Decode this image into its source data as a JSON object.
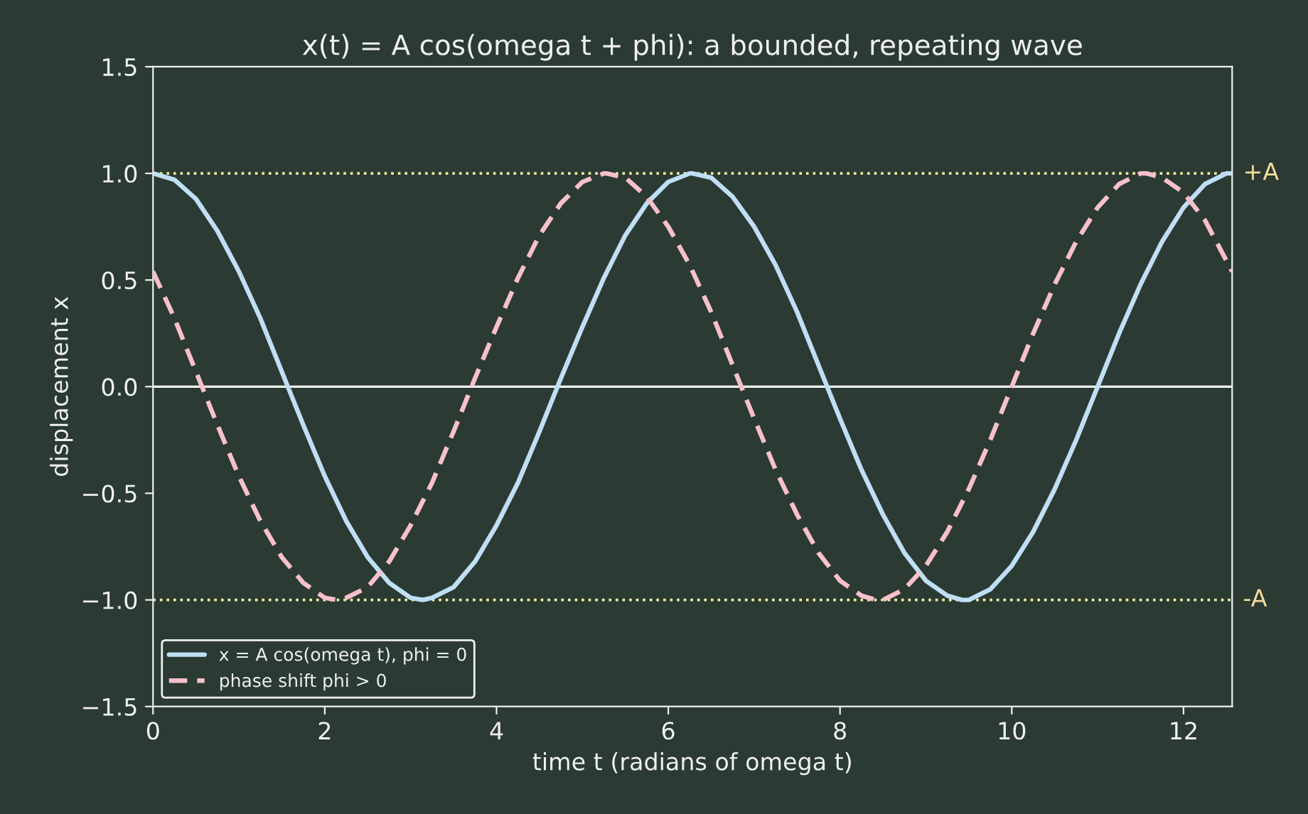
{
  "chart_data": {
    "type": "line",
    "title": "x(t) = A cos(omega t + phi): a bounded, repeating wave",
    "xlabel": "time t (radians of omega t)",
    "ylabel": "displacement x",
    "series": [
      {
        "name": "x = A cos(omega t), phi = 0",
        "color": "#bfdff5",
        "line_style": "solid",
        "x": [
          0,
          0.25,
          0.5,
          0.75,
          1,
          1.25,
          1.5,
          1.75,
          2,
          2.25,
          2.5,
          2.75,
          3,
          3.14,
          3.25,
          3.5,
          3.75,
          4,
          4.25,
          4.5,
          4.75,
          5,
          5.25,
          5.5,
          5.75,
          6,
          6.25,
          6.28,
          6.5,
          6.75,
          7,
          7.25,
          7.5,
          7.75,
          8,
          8.25,
          8.5,
          8.75,
          9,
          9.25,
          9.42,
          9.5,
          9.75,
          10,
          10.25,
          10.5,
          10.75,
          11,
          11.25,
          11.5,
          11.75,
          12,
          12.25,
          12.5,
          12.566
        ],
        "values": [
          1.0,
          0.97,
          0.88,
          0.73,
          0.54,
          0.32,
          0.07,
          -0.18,
          -0.42,
          -0.63,
          -0.8,
          -0.92,
          -0.99,
          -1.0,
          -0.99,
          -0.94,
          -0.82,
          -0.65,
          -0.45,
          -0.21,
          0.04,
          0.28,
          0.51,
          0.71,
          0.86,
          0.96,
          1.0,
          1.0,
          0.98,
          0.89,
          0.75,
          0.57,
          0.35,
          0.1,
          -0.15,
          -0.39,
          -0.6,
          -0.78,
          -0.91,
          -0.98,
          -1.0,
          -1.0,
          -0.95,
          -0.84,
          -0.68,
          -0.48,
          -0.25,
          0.0,
          0.25,
          0.48,
          0.68,
          0.84,
          0.95,
          1.0,
          1.0
        ]
      },
      {
        "name": "phase shift phi > 0",
        "color": "#f7c0cc",
        "line_style": "dashed",
        "x": [
          0,
          0.25,
          0.5,
          0.75,
          1,
          1.25,
          1.5,
          1.75,
          2,
          2.14,
          2.25,
          2.5,
          2.75,
          3,
          3.25,
          3.5,
          3.75,
          4,
          4.25,
          4.5,
          4.75,
          5,
          5.25,
          5.28,
          5.5,
          5.75,
          6,
          6.25,
          6.5,
          6.75,
          7,
          7.25,
          7.5,
          7.75,
          8,
          8.25,
          8.42,
          8.5,
          8.75,
          9,
          9.25,
          9.5,
          9.75,
          10,
          10.25,
          10.5,
          10.75,
          11,
          11.25,
          11.5,
          11.57,
          11.75,
          12,
          12.25,
          12.5,
          12.566
        ],
        "values": [
          0.54,
          0.32,
          0.07,
          -0.18,
          -0.42,
          -0.63,
          -0.8,
          -0.92,
          -0.99,
          -1.0,
          -0.99,
          -0.94,
          -0.82,
          -0.65,
          -0.45,
          -0.21,
          0.04,
          0.28,
          0.51,
          0.71,
          0.86,
          0.96,
          1.0,
          1.0,
          0.98,
          0.89,
          0.75,
          0.57,
          0.35,
          0.1,
          -0.15,
          -0.39,
          -0.6,
          -0.78,
          -0.91,
          -0.98,
          -1.0,
          -1.0,
          -0.95,
          -0.84,
          -0.68,
          -0.48,
          -0.25,
          0.0,
          0.25,
          0.48,
          0.68,
          0.84,
          0.95,
          1.0,
          1.0,
          0.98,
          0.91,
          0.78,
          0.59,
          0.54
        ]
      }
    ],
    "xlim": [
      0,
      12.566
    ],
    "ylim": [
      -1.5,
      1.5
    ],
    "xticks": [
      0,
      2,
      4,
      6,
      8,
      10,
      12
    ],
    "yticks": [
      {
        "value": -1.5,
        "label": "−1.5"
      },
      {
        "value": -1.0,
        "label": "−1.0"
      },
      {
        "value": -0.5,
        "label": "−0.5"
      },
      {
        "value": 0.0,
        "label": "0.0"
      },
      {
        "value": 0.5,
        "label": "0.5"
      },
      {
        "value": 1.0,
        "label": "1.0"
      },
      {
        "value": 1.5,
        "label": "1.5"
      }
    ],
    "ref_lines": [
      {
        "axis": "y",
        "value": 1.0,
        "label": "+A",
        "color": "#f0f0a0",
        "line_style": "dotted"
      },
      {
        "axis": "y",
        "value": -1.0,
        "label": "-A",
        "color": "#f0f0a0",
        "line_style": "dotted"
      },
      {
        "axis": "y",
        "value": 0.0,
        "color": "#f0f0f0",
        "line_style": "solid"
      }
    ],
    "grid": false,
    "legend": "bottom left",
    "marker": "none"
  }
}
